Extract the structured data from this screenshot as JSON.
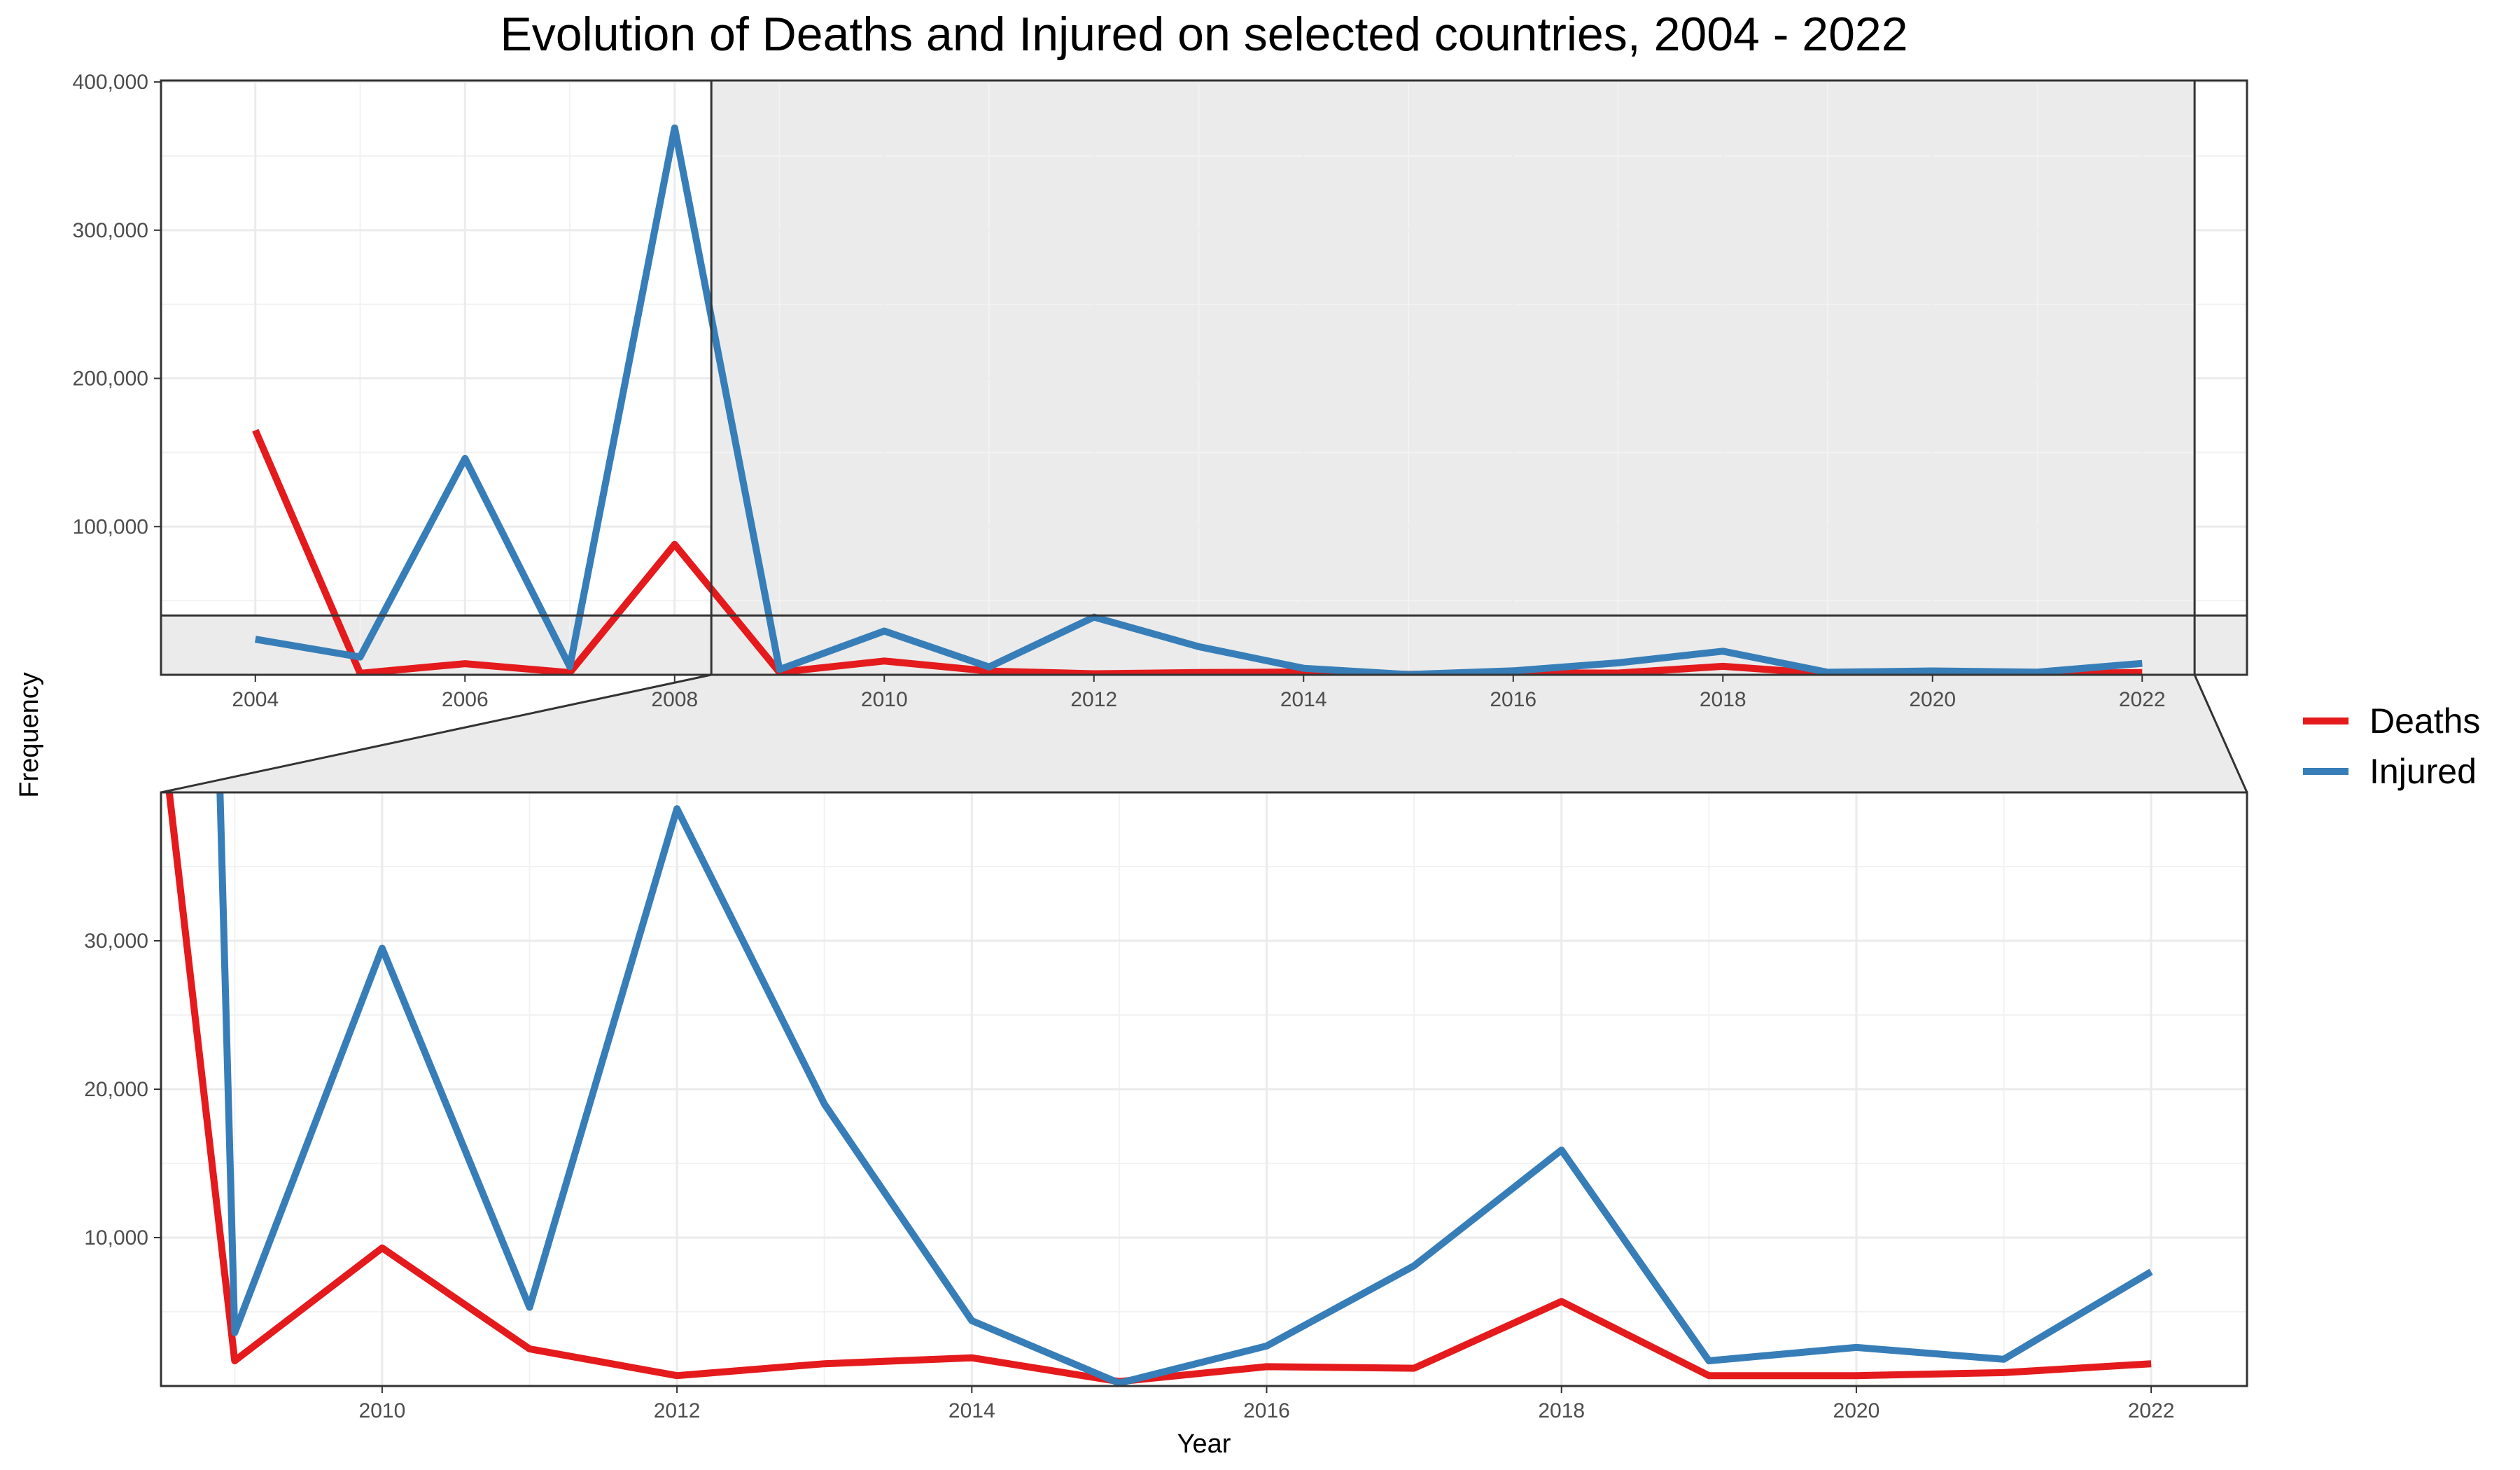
{
  "chart_data": {
    "type": "line",
    "title": "Evolution of Deaths and Injured on selected countries, 2004 - 2022",
    "xlabel": "Year",
    "ylabel": "Frequency",
    "x": [
      2004,
      2005,
      2006,
      2007,
      2008,
      2009,
      2010,
      2011,
      2012,
      2013,
      2014,
      2015,
      2016,
      2017,
      2018,
      2019,
      2020,
      2021,
      2022
    ],
    "series": [
      {
        "name": "Deaths",
        "color": "#e41a1c",
        "values": [
          165000,
          1000,
          7500,
          1500,
          88000,
          1700,
          9300,
          2500,
          700,
          1500,
          1900,
          300,
          1300,
          1200,
          5700,
          700,
          700,
          900,
          1500
        ]
      },
      {
        "name": "Injured",
        "color": "#377eb8",
        "values": [
          24000,
          12000,
          146000,
          5500,
          369000,
          3600,
          29500,
          5300,
          38900,
          19000,
          4400,
          200,
          2700,
          8100,
          15900,
          1700,
          2600,
          1800,
          7700
        ]
      }
    ],
    "grid": true,
    "legend_position": "right",
    "panels": [
      {
        "name": "overview",
        "xlim": [
          2003.1,
          2023.0
        ],
        "ylim": [
          0,
          401000
        ],
        "xticks": [
          "2004",
          "2006",
          "2008",
          "2010",
          "2012",
          "2014",
          "2016",
          "2018",
          "2020",
          "2022"
        ],
        "yticks": [
          "100,000",
          "200,000",
          "300,000",
          "400,000"
        ]
      },
      {
        "name": "zoom",
        "xlim": [
          2008.5,
          2022.65
        ],
        "ylim": [
          0,
          40000
        ],
        "xticks": [
          "2010",
          "2012",
          "2014",
          "2016",
          "2018",
          "2020",
          "2022"
        ],
        "yticks": [
          "10,000",
          "20,000",
          "30,000"
        ]
      }
    ],
    "zoom_region": {
      "x": [
        2008.35,
        2022.5
      ],
      "y": [
        0,
        40000
      ]
    }
  }
}
